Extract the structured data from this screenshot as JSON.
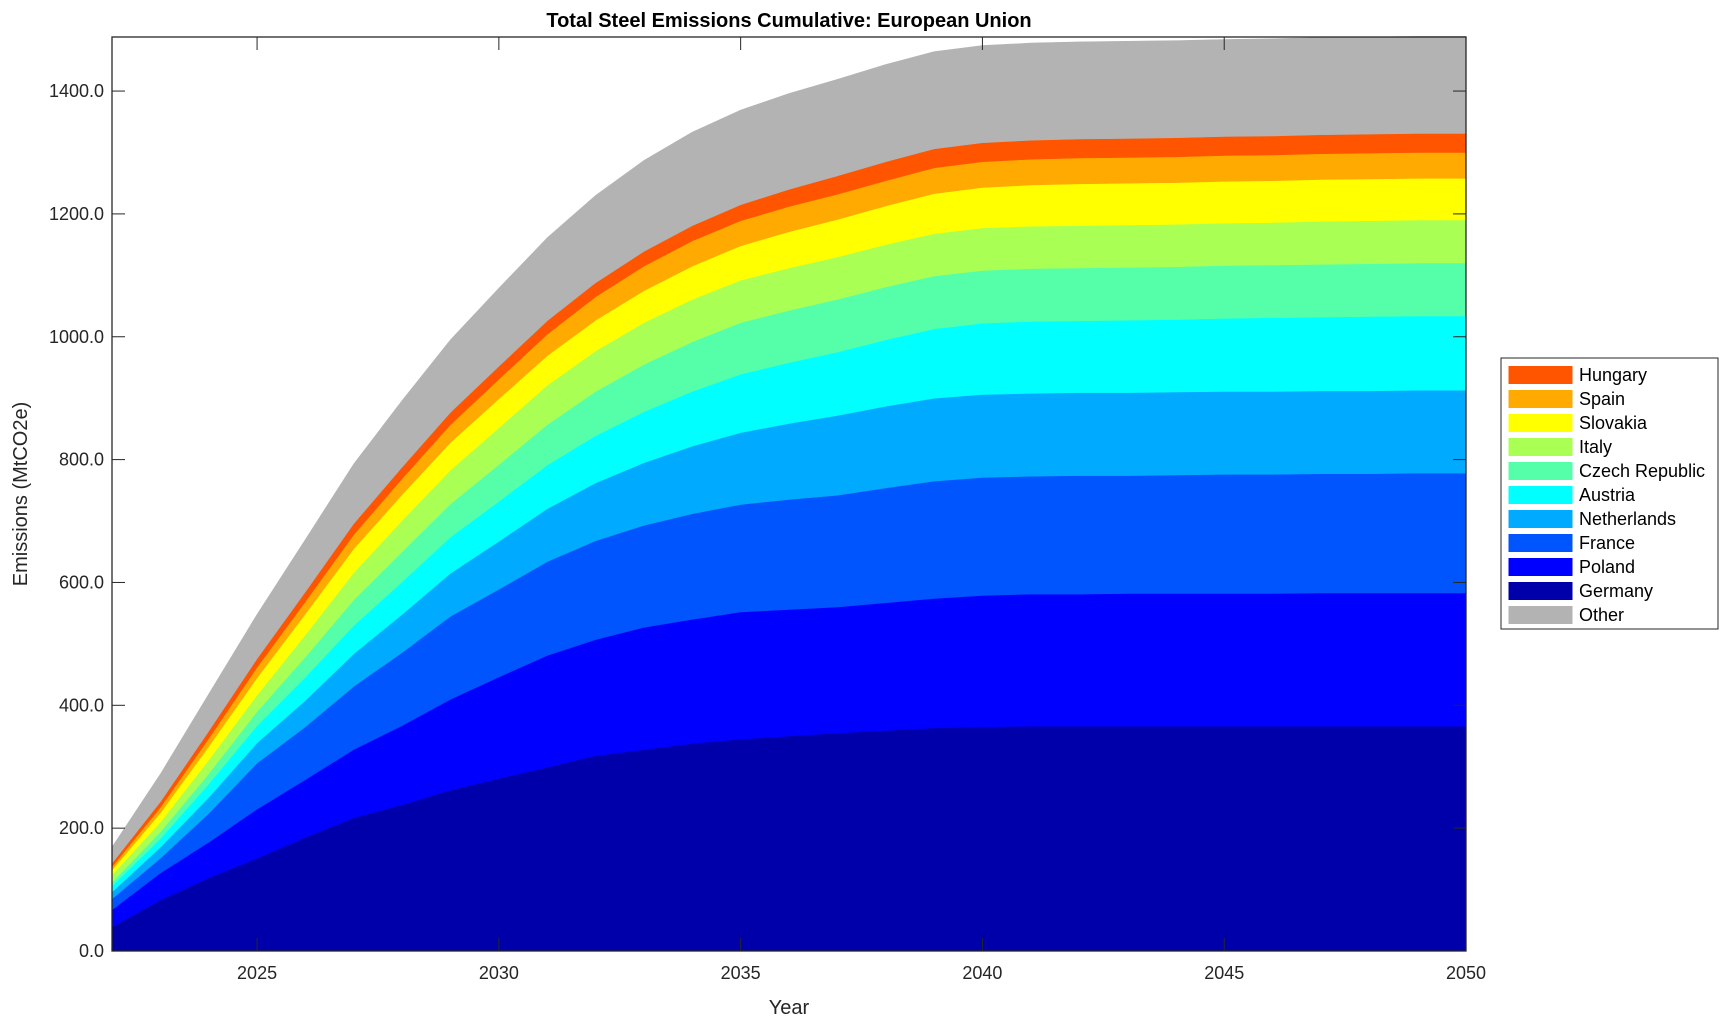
{
  "chart_data": {
    "type": "area",
    "stacked": true,
    "title": "Total Steel Emissions Cumulative: European Union",
    "xlabel": "Year",
    "ylabel": "Emissions (MtCO2e)",
    "xlim": [
      2022,
      2050
    ],
    "ylim": [
      0,
      1488
    ],
    "xticks": [
      "2025",
      "2030",
      "2035",
      "2040",
      "2045",
      "2050"
    ],
    "xtick_values": [
      2025,
      2030,
      2035,
      2040,
      2045,
      2050
    ],
    "yticks": [
      "0.0",
      "200.0",
      "400.0",
      "600.0",
      "800.0",
      "1000.0",
      "1200.0",
      "1400.0"
    ],
    "ytick_values": [
      0,
      200,
      400,
      600,
      800,
      1000,
      1200,
      1400
    ],
    "grid": false,
    "legend_position": "outside-right",
    "x": [
      2022,
      2023,
      2024,
      2025,
      2026,
      2027,
      2028,
      2029,
      2030,
      2031,
      2032,
      2033,
      2034,
      2035,
      2036,
      2037,
      2038,
      2039,
      2040,
      2041,
      2042,
      2043,
      2044,
      2045,
      2046,
      2047,
      2048,
      2049,
      2050
    ],
    "series": [
      {
        "name": "Germany",
        "color": "#0000AA",
        "values": [
          39,
          83,
          119,
          151,
          185,
          217,
          238,
          262,
          281,
          299,
          318,
          328,
          338,
          345,
          350,
          355,
          359,
          363,
          365,
          366,
          366,
          366,
          366,
          366,
          366,
          366,
          366,
          366,
          366
        ]
      },
      {
        "name": "Poland",
        "color": "#0000FF",
        "values": [
          28,
          44,
          58,
          80,
          94,
          111,
          129,
          148,
          165,
          182,
          189,
          199,
          202,
          207,
          206,
          205,
          208,
          211,
          214,
          215,
          215,
          216,
          216,
          216,
          216,
          217,
          217,
          217,
          217
        ]
      },
      {
        "name": "France",
        "color": "#0055FF",
        "values": [
          18,
          24,
          47,
          75,
          86,
          103,
          119,
          135,
          143,
          153,
          161,
          166,
          172,
          175,
          179,
          182,
          187,
          191,
          192,
          192,
          193,
          192,
          193,
          194,
          194,
          194,
          194,
          195,
          195
        ]
      },
      {
        "name": "Netherlands",
        "color": "#00AAFF",
        "values": [
          11,
          18,
          26,
          33,
          43,
          53,
          62,
          70,
          78,
          86,
          94,
          102,
          110,
          117,
          124,
          130,
          133,
          135,
          135,
          135,
          135,
          135,
          135,
          135,
          135,
          135,
          135,
          135,
          135
        ]
      },
      {
        "name": "Austria",
        "color": "#00FFFF",
        "values": [
          10,
          14,
          22,
          28,
          38,
          46,
          53,
          59,
          65,
          71,
          77,
          83,
          89,
          95,
          99,
          103,
          108,
          113,
          116,
          117,
          117,
          118,
          118,
          119,
          120,
          120,
          121,
          121,
          121
        ]
      },
      {
        "name": "Czech Republic",
        "color": "#55FFAA",
        "values": [
          6,
          11,
          17,
          23,
          33,
          42,
          49,
          54,
          60,
          66,
          72,
          77,
          81,
          84,
          85,
          86,
          86,
          86,
          86,
          86,
          86,
          86,
          86,
          86,
          86,
          86,
          86,
          86,
          86
        ]
      },
      {
        "name": "Italy",
        "color": "#AAFF55",
        "values": [
          12,
          16,
          22,
          27,
          36,
          44,
          51,
          55,
          60,
          64,
          66,
          68,
          69,
          69,
          69,
          69,
          69,
          69,
          69,
          69,
          69,
          69,
          69,
          69,
          69,
          70,
          70,
          70,
          70
        ]
      },
      {
        "name": "Slovakia",
        "color": "#FFFF00",
        "values": [
          8,
          15,
          22,
          28,
          34,
          39,
          42,
          45,
          47,
          48,
          50,
          52,
          54,
          56,
          59,
          61,
          63,
          65,
          66,
          67,
          68,
          68,
          68,
          68,
          68,
          68,
          68,
          68,
          68
        ]
      },
      {
        "name": "Spain",
        "color": "#FFAA00",
        "values": [
          5,
          9,
          13,
          17,
          20,
          23,
          26,
          29,
          32,
          35,
          38,
          40,
          41,
          41,
          41,
          41,
          41,
          42,
          42,
          42,
          42,
          42,
          42,
          42,
          42,
          42,
          42,
          42,
          42
        ]
      },
      {
        "name": "Hungary",
        "color": "#FF5500",
        "values": [
          6,
          9,
          12,
          14,
          16,
          18,
          19,
          20,
          21,
          22,
          23,
          24,
          25,
          26,
          28,
          30,
          31,
          31,
          31,
          31,
          31,
          31,
          31,
          31,
          31,
          31,
          31,
          31,
          31
        ]
      },
      {
        "name": "Other",
        "color": "#B3B3B3",
        "values": [
          26,
          45,
          60,
          72,
          85,
          97,
          108,
          118,
          127,
          135,
          142,
          148,
          152,
          154,
          156,
          157,
          158,
          158,
          158,
          158,
          158,
          158,
          158,
          158,
          158,
          158,
          158,
          158,
          158
        ]
      }
    ],
    "legend": [
      "Hungary",
      "Spain",
      "Slovakia",
      "Italy",
      "Czech Republic",
      "Austria",
      "Netherlands",
      "France",
      "Poland",
      "Germany",
      "Other"
    ]
  }
}
